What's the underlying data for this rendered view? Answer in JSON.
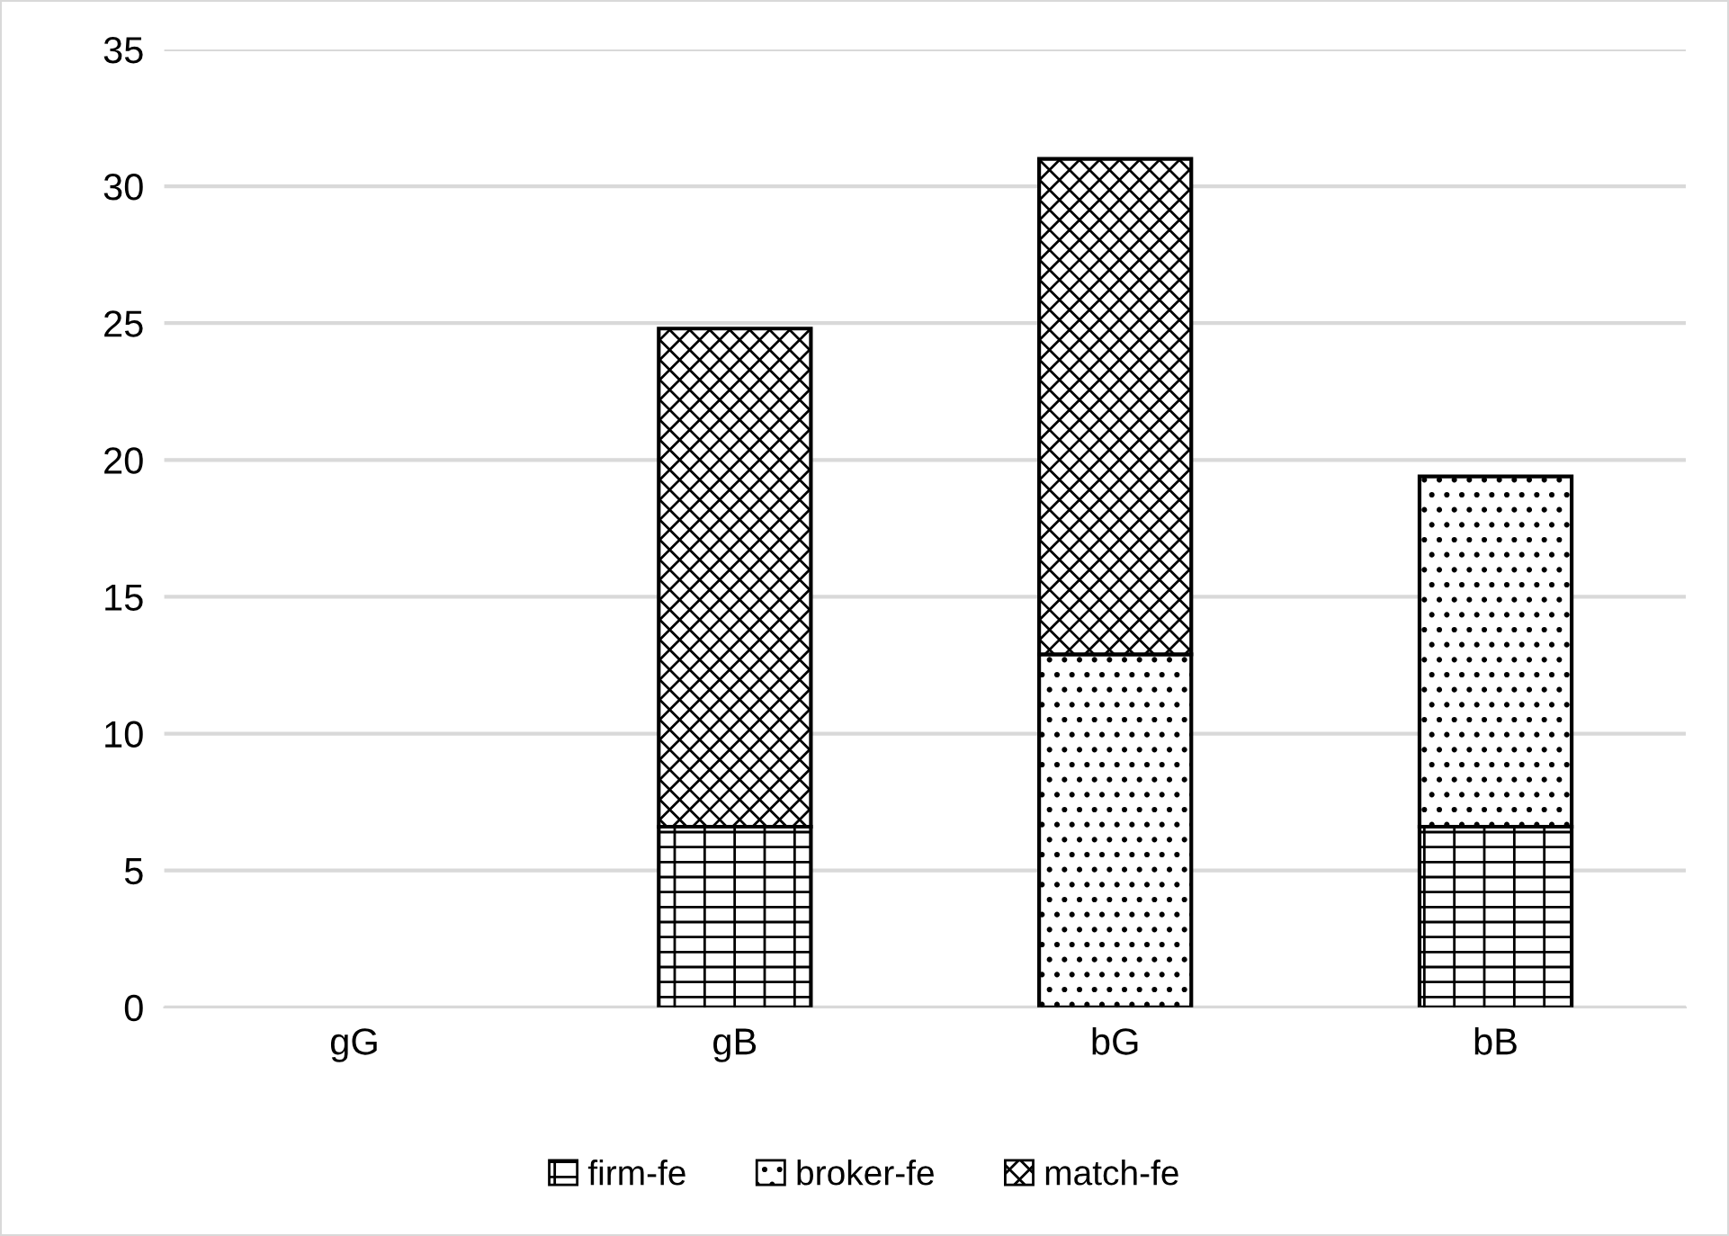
{
  "chart_data": {
    "type": "bar",
    "stacked": true,
    "categories": [
      "gG",
      "gB",
      "bG",
      "bB"
    ],
    "series": [
      {
        "name": "firm-fe",
        "color": "#000000",
        "values": [
          null,
          6.6,
          null,
          6.6
        ]
      },
      {
        "name": "broker-fe",
        "color": "#000000",
        "values": [
          null,
          null,
          12.9,
          12.8
        ]
      },
      {
        "name": "match-fe",
        "color": "#000000",
        "values": [
          null,
          18.2,
          18.1,
          null
        ]
      }
    ],
    "ylim": [
      0,
      35
    ],
    "yticks": [
      0,
      5,
      10,
      15,
      20,
      25,
      30,
      35
    ],
    "grid": "y",
    "legend": "bottom"
  }
}
